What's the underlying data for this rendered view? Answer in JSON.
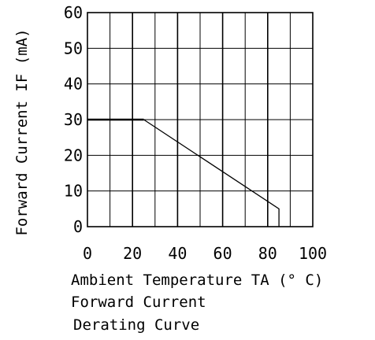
{
  "chart_data": {
    "type": "line",
    "title": "",
    "ylabel": "Forward Current IF (mA)",
    "xlabel": "Ambient Temperature TA (° C)",
    "caption_lines": [
      "Forward Current",
      "Derating Curve"
    ],
    "xlim": [
      0,
      100
    ],
    "ylim": [
      0,
      60
    ],
    "x_ticks": [
      0,
      20,
      40,
      60,
      80,
      100
    ],
    "y_ticks": [
      0,
      10,
      20,
      30,
      40,
      50,
      60
    ],
    "grid": true,
    "series": [
      {
        "points": [
          [
            25,
            30
          ],
          [
            85,
            5
          ],
          [
            85,
            0
          ]
        ]
      }
    ],
    "reference_line": {
      "y": 30,
      "x_range": [
        0,
        25
      ]
    }
  }
}
